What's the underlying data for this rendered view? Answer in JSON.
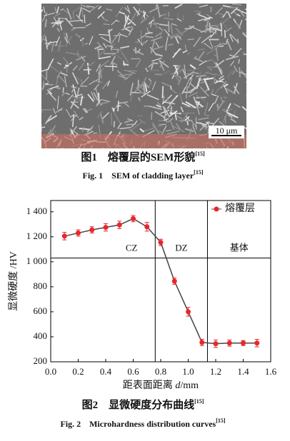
{
  "figure1": {
    "scale_bar": "10 μm",
    "caption_cn": "图1　熔覆层的SEM形貌",
    "caption_cn_ref": "[15]",
    "caption_en": "Fig. 1　SEM of cladding layer",
    "caption_en_ref": "[15]"
  },
  "chart_data": {
    "type": "line",
    "xlabel": [
      "距表面距离 ",
      "d",
      "/mm"
    ],
    "ylabel": "显微硬度 /HV",
    "x": [
      0.1,
      0.2,
      0.3,
      0.4,
      0.5,
      0.6,
      0.7,
      0.8,
      0.9,
      1.0,
      1.1,
      1.2,
      1.3,
      1.4,
      1.5
    ],
    "series": [
      {
        "name": "熔覆层",
        "color": "#e8262c",
        "line_color": "#444444",
        "values": [
          1205,
          1230,
          1255,
          1275,
          1295,
          1345,
          1280,
          1155,
          845,
          600,
          355,
          345,
          350,
          350,
          350
        ],
        "errors": [
          30,
          25,
          25,
          30,
          30,
          25,
          35,
          25,
          25,
          35,
          25,
          30,
          25,
          20,
          30
        ]
      }
    ],
    "xlim": [
      0,
      1.6
    ],
    "ylim": [
      200,
      1490
    ],
    "xticks": [
      {
        "value": 0,
        "label": "0.0"
      },
      0.2,
      0.4,
      0.6,
      0.8,
      {
        "value": 1,
        "label": "1.0"
      },
      1.2,
      1.4,
      1.6
    ],
    "yticks": [
      200,
      400,
      600,
      800,
      {
        "value": 1000,
        "label": "1 000"
      },
      {
        "value": 1200,
        "label": "1 200"
      },
      {
        "value": 1400,
        "label": "1 400"
      }
    ],
    "region_bounds": [
      0.76,
      1.14
    ],
    "region_hline": 1030,
    "regions": [
      "CZ",
      "DZ",
      "基体"
    ],
    "legend": "upper right"
  },
  "figure2": {
    "caption_cn": "图2　显微硬度分布曲线",
    "caption_cn_ref": "[15]",
    "caption_en": "Fig. 2　Microhardness distribution curves",
    "caption_en_ref": "[15]"
  }
}
